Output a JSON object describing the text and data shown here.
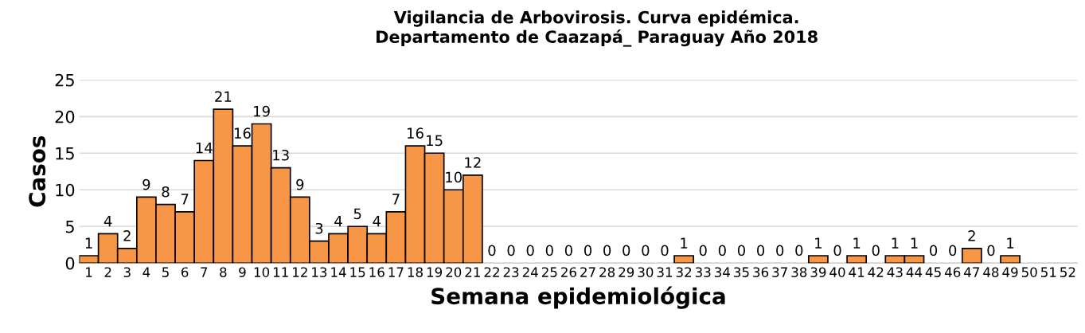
{
  "chart_data": {
    "type": "bar",
    "title": "Vigilancia de Arbovirosis. Curva epidémica.\nDepartamento de Caazapá_ Paraguay Año 2018",
    "xlabel": "Semana epidemiológica",
    "ylabel": "Casos",
    "categories": [
      "1",
      "2",
      "3",
      "4",
      "5",
      "6",
      "7",
      "8",
      "9",
      "10",
      "11",
      "12",
      "13",
      "14",
      "15",
      "16",
      "17",
      "18",
      "19",
      "20",
      "21",
      "22",
      "23",
      "24",
      "25",
      "26",
      "27",
      "28",
      "29",
      "30",
      "31",
      "32",
      "33",
      "34",
      "35",
      "36",
      "37",
      "38",
      "39",
      "40",
      "41",
      "42",
      "43",
      "44",
      "45",
      "46",
      "47",
      "48",
      "49",
      "50",
      "51",
      "52"
    ],
    "values": [
      1,
      4,
      2,
      9,
      8,
      7,
      14,
      21,
      16,
      19,
      13,
      9,
      3,
      4,
      5,
      4,
      7,
      16,
      15,
      10,
      12,
      0,
      0,
      0,
      0,
      0,
      0,
      0,
      0,
      0,
      0,
      1,
      0,
      0,
      0,
      0,
      0,
      0,
      1,
      0,
      1,
      0,
      1,
      1,
      0,
      0,
      2,
      0,
      1,
      0,
      0,
      0
    ],
    "value_labels": [
      "1",
      "4",
      "2",
      "9",
      "8",
      "7",
      "14",
      "21",
      "16",
      "19",
      "13",
      "9",
      "3",
      "4",
      "5",
      "4",
      "7",
      "16",
      "15",
      "10",
      "12",
      "0",
      "0",
      "0",
      "0",
      "0",
      "0",
      "0",
      "0",
      "0",
      "0",
      "1",
      "0",
      "0",
      "0",
      "0",
      "0",
      "0",
      "1",
      "0",
      "1",
      "0",
      "1",
      "1",
      "0",
      "0",
      "2",
      "0",
      "1",
      null,
      null,
      null
    ],
    "color": "#f79646",
    "ylim": [
      0,
      25
    ],
    "yticks": [
      0,
      5,
      10,
      15,
      20,
      25
    ],
    "grid": "y"
  }
}
